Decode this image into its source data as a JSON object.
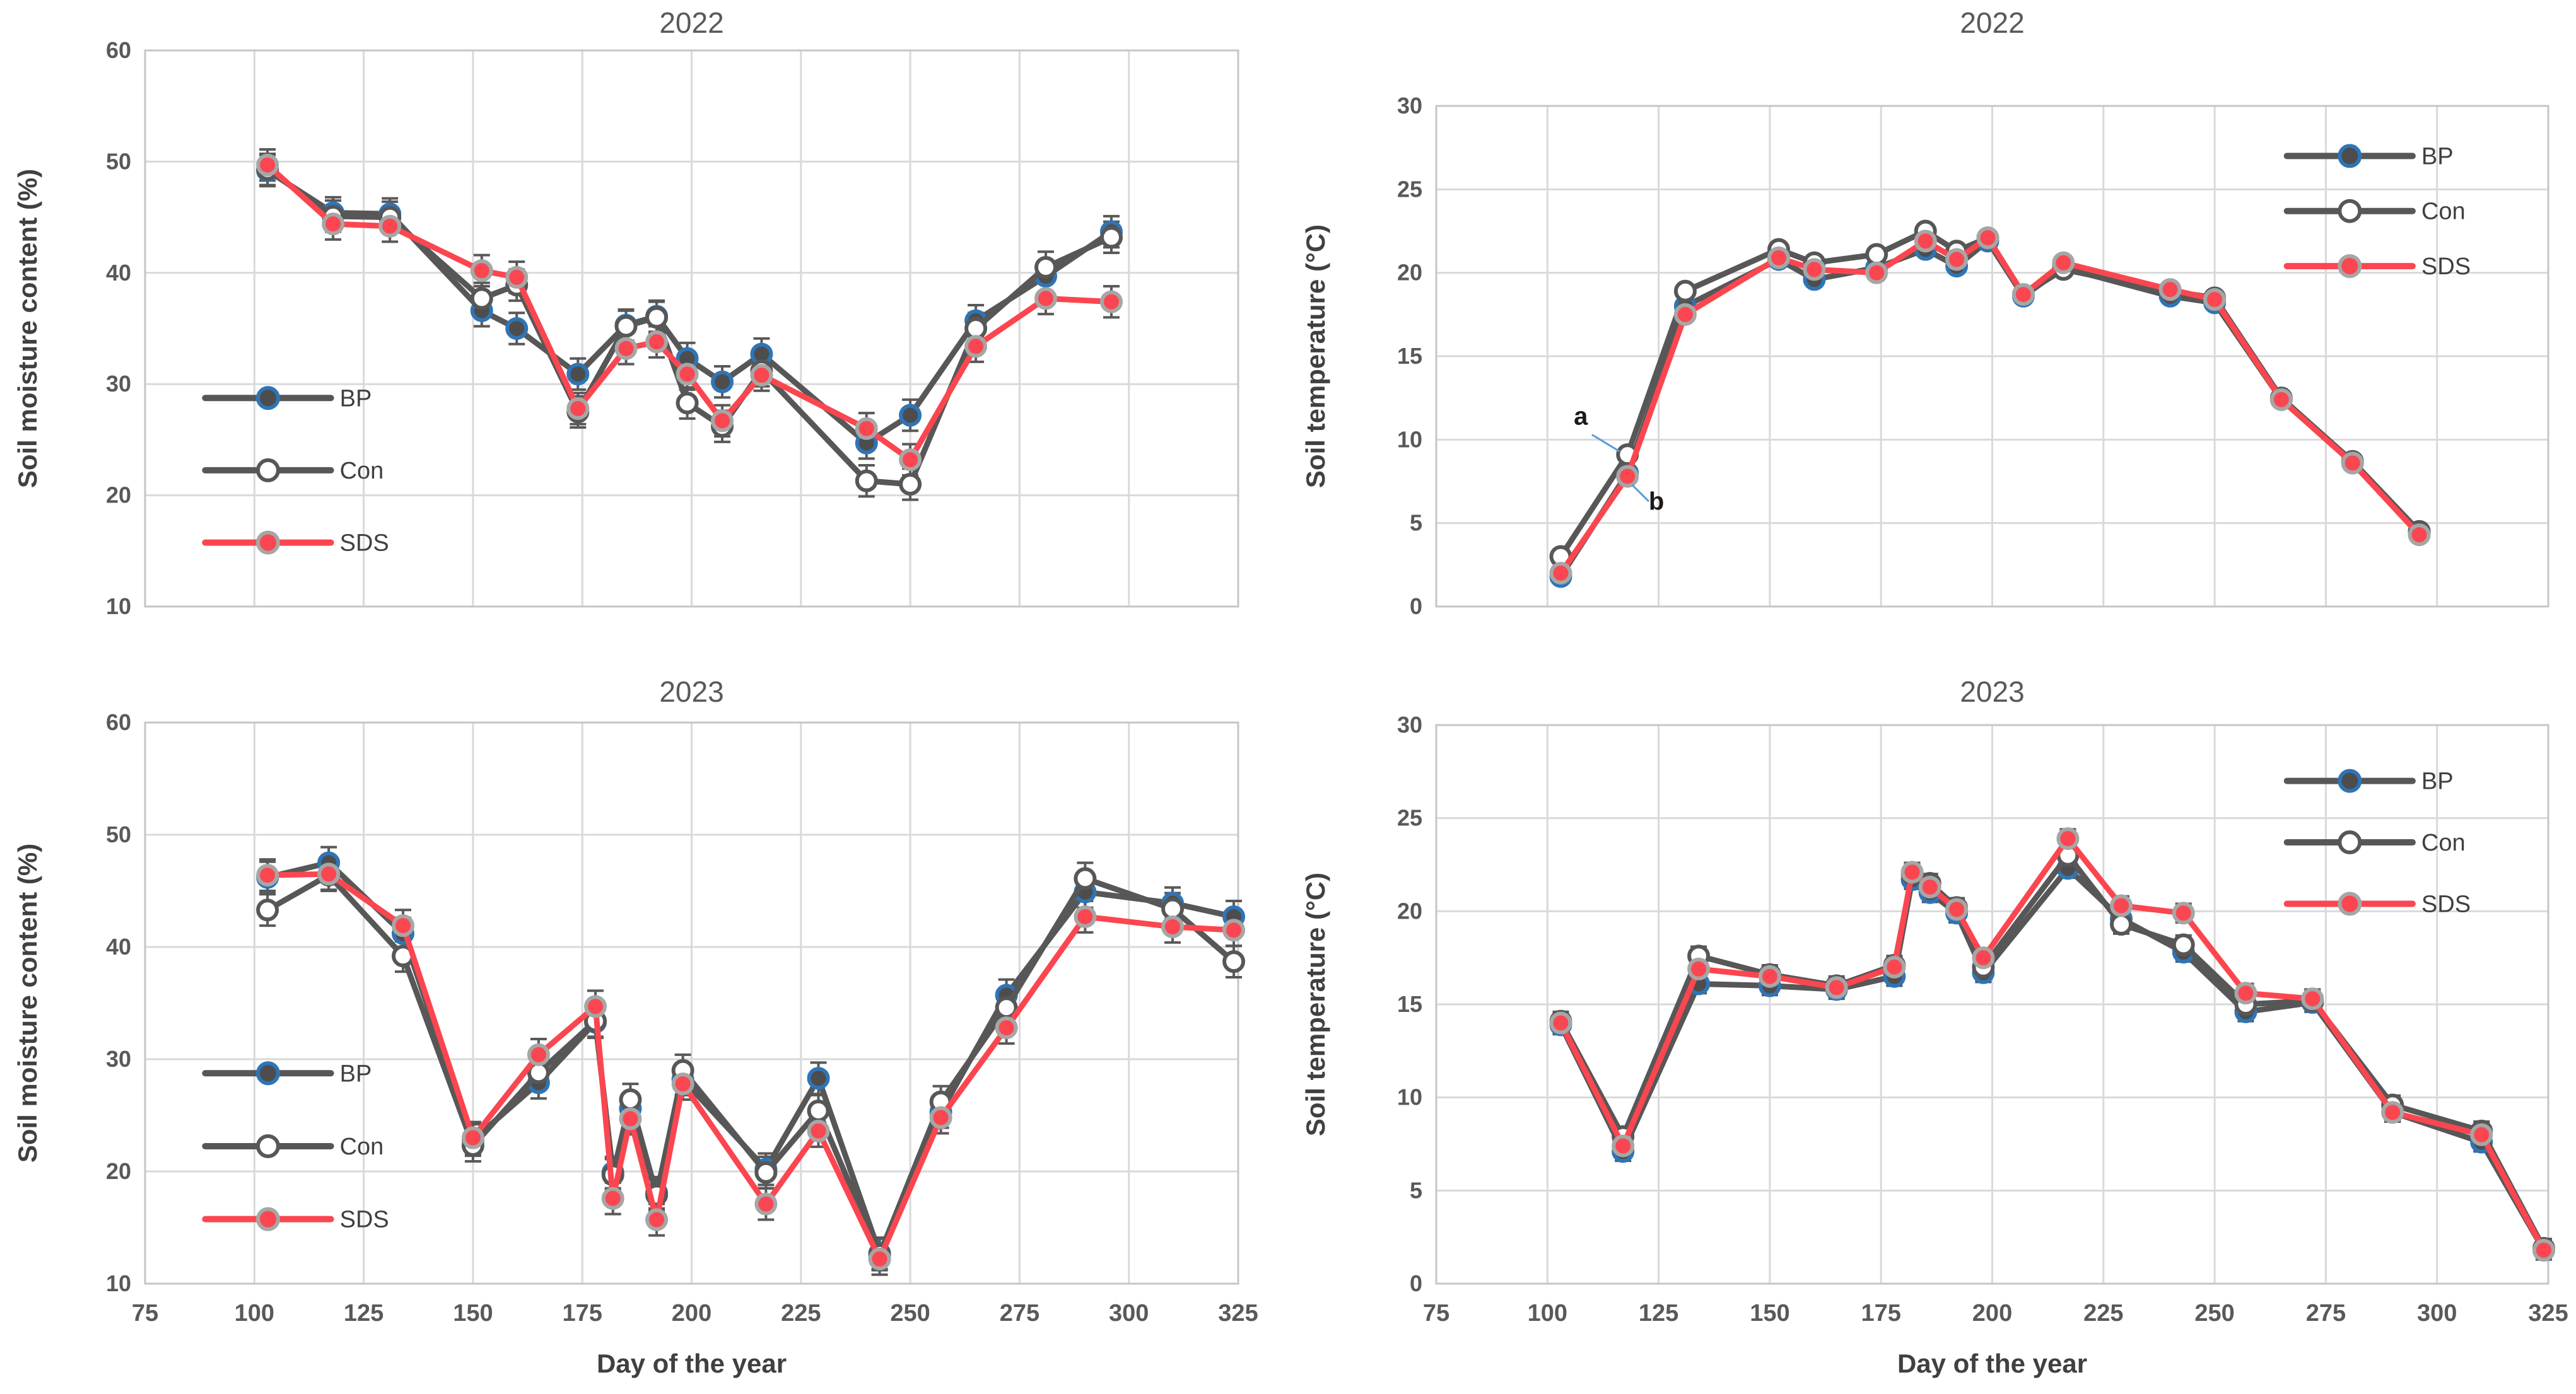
{
  "figure": {
    "background": "#FFFFFF",
    "x_axis_title": "Day of the year",
    "y_axis_title_moisture": "Soil moisture content (%)",
    "y_axis_title_temperature": "Soil temperature  (°C)"
  },
  "colors": {
    "grid": "#D9D9D9",
    "plot_border": "#C6C6C6",
    "tick_text": "#595959",
    "title_text": "#595959",
    "axis_title_text": "#404040",
    "error_bar": "#595959",
    "annotation_text": "#1a1a1a",
    "annotation_leader": "#5B9BD5",
    "series": {
      "BP": {
        "line": "#575757",
        "marker_fill": "#4D4D4D",
        "marker_ring": "#2E75B6"
      },
      "Con": {
        "line": "#575757",
        "marker_fill": "#FFFFFF",
        "marker_ring": "#575757"
      },
      "SDS": {
        "line": "#FB4650",
        "marker_fill": "#FA4650",
        "marker_ring": "#A6A6A6"
      }
    }
  },
  "chart_data": [
    {
      "id": "moisture-2022",
      "type": "line",
      "title": "2022",
      "ylabel": "Soil moisture content (%)",
      "xlabel": null,
      "xlim": [
        75,
        325
      ],
      "x_ticks": [
        75,
        100,
        125,
        150,
        175,
        200,
        225,
        250,
        275,
        300,
        325
      ],
      "show_x_tick_labels": false,
      "ylim": [
        10,
        60
      ],
      "y_ticks": [
        10,
        20,
        30,
        40,
        50,
        60
      ],
      "x": [
        103,
        118,
        131,
        152,
        160,
        174,
        185,
        192,
        199,
        207,
        216,
        240,
        250,
        265,
        281,
        296
      ],
      "series": [
        {
          "name": "BP",
          "values": [
            49.2,
            45.4,
            45.3,
            36.6,
            35.0,
            30.9,
            35.3,
            36.1,
            32.3,
            30.2,
            32.7,
            24.7,
            27.2,
            35.7,
            39.7,
            43.7
          ]
        },
        {
          "name": "Con",
          "values": [
            49.3,
            45.1,
            45.0,
            37.7,
            38.9,
            27.5,
            35.2,
            36.0,
            28.3,
            26.2,
            31.2,
            21.3,
            21.0,
            35.0,
            40.5,
            43.2
          ]
        },
        {
          "name": "SDS",
          "values": [
            49.7,
            44.4,
            44.2,
            40.2,
            39.6,
            27.8,
            33.2,
            33.8,
            30.9,
            26.7,
            30.8,
            26.0,
            23.2,
            33.4,
            37.7,
            37.4
          ]
        }
      ],
      "error_bar": 1.4,
      "legend": {
        "position": "left",
        "entries": [
          "BP",
          "Con",
          "SDS"
        ]
      },
      "annotations": []
    },
    {
      "id": "temperature-2022",
      "type": "line",
      "title": "2022",
      "ylabel": "Soil temperature  (°C)",
      "xlabel": null,
      "xlim": [
        75,
        325
      ],
      "x_ticks": [
        75,
        100,
        125,
        150,
        175,
        200,
        225,
        250,
        275,
        300,
        325
      ],
      "show_x_tick_labels": false,
      "ylim": [
        0,
        30
      ],
      "y_ticks": [
        0,
        5,
        10,
        15,
        20,
        25,
        30
      ],
      "x": [
        103,
        118,
        131,
        152,
        160,
        174,
        185,
        192,
        199,
        207,
        216,
        240,
        250,
        265,
        281,
        296
      ],
      "series": [
        {
          "name": "BP",
          "values": [
            1.8,
            8.0,
            18.0,
            20.8,
            19.6,
            20.3,
            21.4,
            20.4,
            21.9,
            18.6,
            20.3,
            18.6,
            18.2,
            12.4,
            8.6,
            4.5
          ]
        },
        {
          "name": "Con",
          "values": [
            3.0,
            9.1,
            18.9,
            21.4,
            20.6,
            21.1,
            22.5,
            21.3,
            22.1,
            18.7,
            20.2,
            18.9,
            18.5,
            12.5,
            8.7,
            4.5
          ]
        },
        {
          "name": "SDS",
          "values": [
            2.0,
            7.8,
            17.5,
            20.9,
            20.2,
            20.0,
            21.9,
            20.8,
            22.1,
            18.7,
            20.6,
            19.0,
            18.4,
            12.4,
            8.6,
            4.3
          ]
        }
      ],
      "error_bar": 0.4,
      "legend": {
        "position": "top-right",
        "entries": [
          "BP",
          "Con",
          "SDS"
        ]
      },
      "annotations": [
        {
          "label": "a",
          "text_day": 107.5,
          "text_value": 10.9,
          "line": [
            [
              110.0,
              10.3
            ],
            [
              116.2,
              9.3
            ]
          ]
        },
        {
          "label": "b",
          "text_day": 124.5,
          "text_value": 5.8,
          "line": [
            [
              119.0,
              7.3
            ],
            [
              122.8,
              6.3
            ]
          ]
        }
      ]
    },
    {
      "id": "moisture-2023",
      "type": "line",
      "title": "2023",
      "ylabel": "Soil moisture content (%)",
      "xlabel": "Day of the year",
      "xlim": [
        75,
        325
      ],
      "x_ticks": [
        75,
        100,
        125,
        150,
        175,
        200,
        225,
        250,
        275,
        300,
        325
      ],
      "show_x_tick_labels": true,
      "ylim": [
        10,
        60
      ],
      "y_ticks": [
        10,
        20,
        30,
        40,
        50,
        60
      ],
      "x": [
        103,
        117,
        134,
        150,
        165,
        178,
        182,
        186,
        192,
        198,
        217,
        229,
        243,
        257,
        272,
        290,
        310,
        324
      ],
      "series": [
        {
          "name": "BP",
          "values": [
            46.2,
            47.5,
            41.2,
            22.8,
            27.9,
            33.3,
            19.9,
            25.6,
            18.1,
            28.2,
            20.2,
            28.3,
            12.7,
            25.3,
            35.7,
            44.9,
            43.9,
            42.7
          ]
        },
        {
          "name": "Con",
          "values": [
            43.3,
            46.4,
            39.2,
            22.3,
            28.8,
            33.4,
            19.7,
            26.4,
            17.9,
            29.0,
            19.9,
            25.4,
            12.6,
            26.2,
            34.6,
            46.1,
            43.4,
            38.7
          ]
        },
        {
          "name": "SDS",
          "values": [
            46.4,
            46.5,
            41.9,
            23.0,
            30.4,
            34.7,
            17.6,
            24.7,
            15.7,
            27.8,
            17.1,
            23.6,
            12.2,
            24.8,
            32.8,
            42.7,
            41.8,
            41.5
          ]
        }
      ],
      "error_bar": 1.4,
      "legend": {
        "position": "left",
        "entries": [
          "BP",
          "Con",
          "SDS"
        ]
      },
      "annotations": []
    },
    {
      "id": "temperature-2023",
      "type": "line",
      "title": "2023",
      "ylabel": "Soil temperature  (°C)",
      "xlabel": "Day of the year",
      "xlim": [
        75,
        325
      ],
      "x_ticks": [
        75,
        100,
        125,
        150,
        175,
        200,
        225,
        250,
        275,
        300,
        325
      ],
      "show_x_tick_labels": true,
      "ylim": [
        0,
        30
      ],
      "y_ticks": [
        0,
        5,
        10,
        15,
        20,
        25,
        30
      ],
      "x": [
        103,
        117,
        134,
        150,
        165,
        178,
        182,
        186,
        192,
        198,
        217,
        229,
        243,
        257,
        272,
        290,
        310,
        324
      ],
      "series": [
        {
          "name": "BP",
          "values": [
            13.9,
            7.1,
            16.1,
            16.0,
            15.8,
            16.5,
            21.7,
            21.0,
            19.9,
            16.7,
            22.3,
            19.6,
            17.8,
            14.6,
            15.1,
            9.2,
            7.6,
            1.8
          ]
        },
        {
          "name": "Con",
          "values": [
            14.1,
            7.9,
            17.6,
            16.6,
            16.0,
            17.1,
            22.0,
            21.5,
            20.2,
            17.0,
            23.0,
            19.3,
            18.2,
            15.0,
            15.2,
            9.6,
            8.2,
            1.9
          ]
        },
        {
          "name": "SDS",
          "values": [
            14.0,
            7.4,
            16.9,
            16.5,
            15.9,
            17.0,
            22.1,
            21.3,
            20.1,
            17.5,
            23.9,
            20.3,
            19.9,
            15.6,
            15.3,
            9.2,
            8.0,
            1.8
          ]
        }
      ],
      "error_bar": 0.5,
      "legend": {
        "position": "top-right",
        "entries": [
          "BP",
          "Con",
          "SDS"
        ]
      },
      "annotations": []
    }
  ]
}
